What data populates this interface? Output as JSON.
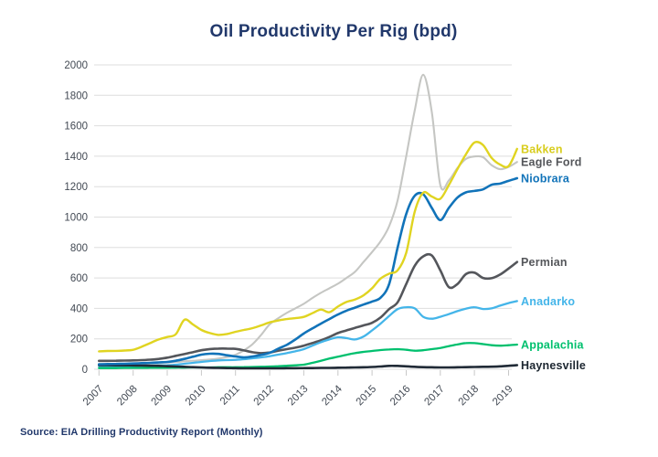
{
  "title": "Oil Productivity Per Rig (bpd)",
  "source_note": "Source: EIA Drilling Productivity Report (Monthly)",
  "colors": {
    "title_text": "#21386B",
    "source_text": "#21386B",
    "axis_tick_text": "#434A54",
    "gridline": "#DEDEDE",
    "tick_mark": "#C8C8C8",
    "bakken": "#E0D421",
    "eagle_ford_line": "#C5C6C3",
    "eagle_ford_label": "#54565A",
    "niobrara": "#1173B9",
    "permian": "#54565B",
    "anadarko": "#44B5E9",
    "appalachia": "#00C06E",
    "haynesville": "#202A36"
  },
  "chart_data": {
    "type": "line",
    "title": "Oil Productivity Per Rig (bpd)",
    "xlabel": "",
    "ylabel": "",
    "ylim": [
      0,
      2000
    ],
    "grid": true,
    "legend_position": "right-of-line-ends",
    "y_ticks": [
      0,
      200,
      400,
      600,
      800,
      1000,
      1200,
      1400,
      1600,
      1800,
      2000
    ],
    "x_ticks": [
      2007,
      2008,
      2009,
      2010,
      2011,
      2012,
      2013,
      2014,
      2015,
      2016,
      2017,
      2018,
      2019
    ],
    "x_tick_labels": [
      "2007",
      "2008",
      "2009",
      "2010",
      "2011",
      "2012",
      "2013",
      "2014",
      "2015",
      "2016",
      "2017",
      "2018",
      "2019"
    ],
    "x_start": 2007.0,
    "x_step": 0.25,
    "series": [
      {
        "name": "Bakken",
        "slug": "bakken",
        "color": "#E0D421",
        "label_color": "#D8CD1E",
        "values": [
          118,
          120,
          121,
          123,
          128,
          148,
          172,
          196,
          212,
          230,
          325,
          295,
          258,
          238,
          226,
          232,
          246,
          258,
          270,
          288,
          308,
          320,
          330,
          336,
          344,
          368,
          392,
          375,
          412,
          442,
          458,
          486,
          532,
          596,
          628,
          650,
          765,
          1035,
          1160,
          1135,
          1120,
          1210,
          1315,
          1412,
          1490,
          1474,
          1390,
          1345,
          1335,
          1448
        ]
      },
      {
        "name": "Eagle Ford",
        "slug": "eagle-ford",
        "color": "#C5C6C3",
        "label_color": "#54565A",
        "values": [
          25,
          26,
          27,
          28,
          30,
          33,
          36,
          40,
          44,
          48,
          52,
          56,
          60,
          64,
          70,
          80,
          95,
          125,
          165,
          225,
          295,
          335,
          370,
          400,
          430,
          468,
          502,
          532,
          562,
          600,
          640,
          705,
          770,
          840,
          940,
          1110,
          1400,
          1700,
          1935,
          1690,
          1210,
          1240,
          1322,
          1382,
          1398,
          1394,
          1342,
          1315,
          1330,
          1362
        ]
      },
      {
        "name": "Niobrara",
        "slug": "niobrara",
        "color": "#1173B9",
        "label_color": "#1173B9",
        "values": [
          33,
          34,
          35,
          36,
          38,
          40,
          42,
          45,
          48,
          56,
          68,
          82,
          96,
          102,
          101,
          92,
          84,
          78,
          84,
          94,
          108,
          135,
          160,
          195,
          235,
          268,
          300,
          330,
          360,
          385,
          405,
          425,
          445,
          470,
          560,
          800,
          1020,
          1140,
          1150,
          1060,
          980,
          1060,
          1128,
          1162,
          1172,
          1182,
          1212,
          1220,
          1238,
          1255
        ]
      },
      {
        "name": "Permian",
        "slug": "permian",
        "color": "#54565B",
        "label_color": "#54565A",
        "values": [
          55,
          55,
          56,
          57,
          58,
          60,
          63,
          68,
          76,
          88,
          100,
          112,
          125,
          133,
          136,
          136,
          134,
          124,
          112,
          106,
          110,
          122,
          132,
          142,
          155,
          172,
          190,
          212,
          238,
          255,
          272,
          288,
          305,
          340,
          395,
          440,
          560,
          680,
          742,
          748,
          650,
          540,
          560,
          625,
          635,
          600,
          598,
          622,
          662,
          705
        ]
      },
      {
        "name": "Anadarko",
        "slug": "anadarko",
        "color": "#44B5E9",
        "label_color": "#44B5E9",
        "values": [
          20,
          21,
          21,
          22,
          22,
          23,
          24,
          25,
          26,
          30,
          36,
          42,
          48,
          54,
          58,
          60,
          62,
          66,
          72,
          78,
          86,
          96,
          106,
          118,
          132,
          155,
          178,
          196,
          210,
          205,
          196,
          215,
          255,
          300,
          350,
          395,
          408,
          400,
          345,
          332,
          345,
          362,
          382,
          398,
          408,
          396,
          400,
          418,
          435,
          448
        ]
      },
      {
        "name": "Appalachia",
        "slug": "appalachia",
        "color": "#00C06E",
        "label_color": "#00C06E",
        "values": [
          8,
          8,
          8,
          9,
          9,
          9,
          10,
          10,
          10,
          11,
          11,
          12,
          12,
          12,
          13,
          13,
          13,
          14,
          15,
          16,
          18,
          20,
          23,
          26,
          30,
          42,
          56,
          70,
          82,
          95,
          106,
          114,
          120,
          126,
          130,
          132,
          128,
          122,
          125,
          132,
          140,
          152,
          163,
          172,
          172,
          165,
          158,
          155,
          158,
          162
        ]
      },
      {
        "name": "Haynesville",
        "slug": "haynesville",
        "color": "#202A36",
        "label_color": "#1C2630",
        "values": [
          28,
          27,
          26,
          26,
          25,
          24,
          23,
          22,
          20,
          18,
          16,
          14,
          12,
          10,
          9,
          8,
          7,
          6,
          6,
          6,
          6,
          6,
          7,
          7,
          8,
          8,
          9,
          9,
          10,
          11,
          12,
          13,
          15,
          18,
          22,
          22,
          19,
          16,
          14,
          13,
          12,
          12,
          13,
          14,
          15,
          16,
          17,
          19,
          23,
          27
        ]
      }
    ]
  }
}
